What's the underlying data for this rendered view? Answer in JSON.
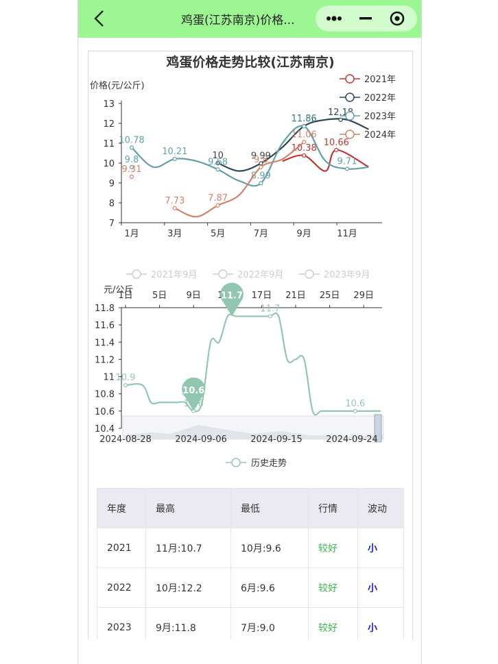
{
  "window": {
    "title": "鸡蛋(江苏南京)价格...",
    "brand_color": "#9cf792"
  },
  "chart_data": [
    {
      "type": "line",
      "title": "鸡蛋价格走势比较(江苏南京)",
      "ylabel": "价格(元/公斤)",
      "ylim": [
        7,
        13
      ],
      "yticks": [
        "7",
        "8",
        "9",
        "10",
        "11",
        "12",
        "13"
      ],
      "xticks": [
        "1月",
        "3月",
        "5月",
        "7月",
        "9月",
        "11月"
      ],
      "legend_position": "top-right",
      "series": [
        {
          "name": "2021年",
          "color": "#c23531",
          "points": [
            [
              8,
              10.1
            ],
            [
              9,
              10.38
            ],
            [
              10,
              9.6
            ],
            [
              10.5,
              10.66
            ],
            [
              12,
              9.8
            ]
          ],
          "labels": [
            {
              "x": 9,
              "y": 10.38,
              "text": "10.38"
            },
            {
              "x": 10.5,
              "y": 10.66,
              "text": "10.66"
            }
          ]
        },
        {
          "name": "2022年",
          "color": "#2f4554",
          "points": [
            [
              5,
              10
            ],
            [
              6,
              9.6
            ],
            [
              7,
              9.99
            ],
            [
              8,
              10.8
            ],
            [
              9,
              11.86
            ],
            [
              10,
              12.18
            ],
            [
              11,
              12.18
            ],
            [
              12,
              11.7
            ]
          ],
          "labels": [
            {
              "x": 5,
              "y": 10,
              "text": "10"
            },
            {
              "x": 7,
              "y": 9.99,
              "text": "9.99"
            },
            {
              "x": 9,
              "y": 11.86,
              "text": "11.86"
            },
            {
              "x": 10.7,
              "y": 12.18,
              "text": "12.18"
            }
          ]
        },
        {
          "name": "2023年",
          "color": "#61a0a8",
          "points": [
            [
              1,
              10.78
            ],
            [
              2,
              9.8
            ],
            [
              3,
              10.21
            ],
            [
              4,
              10.1
            ],
            [
              5,
              9.68
            ],
            [
              6,
              9.1
            ],
            [
              7,
              8.99
            ],
            [
              8,
              11.0
            ],
            [
              9,
              11.85
            ],
            [
              10,
              10.1
            ],
            [
              11,
              9.71
            ],
            [
              12,
              9.8
            ]
          ],
          "labels": [
            {
              "x": 1,
              "y": 10.78,
              "text": "10.78"
            },
            {
              "x": 1,
              "y": 9.8,
              "text": "9.8"
            },
            {
              "x": 3,
              "y": 10.21,
              "text": "10.21"
            },
            {
              "x": 5,
              "y": 9.68,
              "text": "9.68"
            },
            {
              "x": 7,
              "y": 8.99,
              "text": "8.99"
            },
            {
              "x": 9,
              "y": 11.85,
              "text": "11.85"
            },
            {
              "x": 11,
              "y": 9.71,
              "text": "9.71"
            }
          ]
        },
        {
          "name": "2024年",
          "color": "#d48265",
          "points": [
            [
              3,
              7.73
            ],
            [
              4,
              7.3
            ],
            [
              5,
              7.87
            ],
            [
              6,
              8.4
            ],
            [
              7,
              9.8
            ],
            [
              8,
              10.2
            ],
            [
              9,
              11.06
            ]
          ],
          "extra_points": [
            [
              1,
              9.31
            ]
          ],
          "labels": [
            {
              "x": 1,
              "y": 9.31,
              "text": "9.31"
            },
            {
              "x": 3,
              "y": 7.73,
              "text": "7.73"
            },
            {
              "x": 5,
              "y": 7.87,
              "text": "7.87"
            },
            {
              "x": 7,
              "y": 9.8,
              "text": "9.8"
            },
            {
              "x": 9,
              "y": 11.06,
              "text": "11.06"
            }
          ]
        }
      ]
    },
    {
      "type": "line",
      "ylabel": "元/公斤",
      "ylim": [
        10.4,
        11.8
      ],
      "yticks": [
        "10.4",
        "10.6",
        "10.8",
        "11",
        "11.2",
        "11.4",
        "11.6",
        "11.8"
      ],
      "top_xticks": [
        "1日",
        "5日",
        "9日",
        "13日",
        "17日",
        "21日",
        "25日",
        "29日"
      ],
      "bottom_xticks": [
        "2024-08-28",
        "2024-09-06",
        "2024-09-15",
        "2024-09-24"
      ],
      "top_legend": [
        "2021年9月",
        "2022年9月",
        "2023年9月"
      ],
      "bottom_legend": "历史走势",
      "series": [
        {
          "name": "历史走势",
          "color": "#91c7ae",
          "points": [
            [
              0,
              10.9
            ],
            [
              2,
              10.9
            ],
            [
              3,
              10.7
            ],
            [
              4,
              10.7
            ],
            [
              5,
              10.7
            ],
            [
              6,
              10.7
            ],
            [
              7,
              10.7
            ],
            [
              8,
              10.6
            ],
            [
              9,
              10.7
            ],
            [
              10,
              11.4
            ],
            [
              11,
              11.4
            ],
            [
              12,
              11.7
            ],
            [
              13,
              11.7
            ],
            [
              14,
              11.7
            ],
            [
              15,
              11.7
            ],
            [
              16,
              11.7
            ],
            [
              17,
              11.7
            ],
            [
              18,
              11.7
            ],
            [
              19,
              11.2
            ],
            [
              20,
              11.2
            ],
            [
              21,
              11.2
            ],
            [
              22,
              10.6
            ],
            [
              23,
              10.6
            ],
            [
              24,
              10.6
            ],
            [
              25,
              10.6
            ],
            [
              26,
              10.6
            ],
            [
              27,
              10.6
            ],
            [
              28,
              10.6
            ],
            [
              29,
              10.6
            ],
            [
              30,
              10.6
            ]
          ],
          "labels": [
            {
              "x": 0,
              "y": 10.9,
              "text": "10.9"
            },
            {
              "x": 8,
              "y": 10.6,
              "text": "10.6"
            },
            {
              "x": 17,
              "y": 11.7,
              "text": "11.7"
            },
            {
              "x": 27,
              "y": 10.6,
              "text": "10.6"
            }
          ],
          "markers": [
            {
              "x": 8,
              "y": 10.6,
              "text": "10.6"
            },
            {
              "x": 12.5,
              "y": 11.7,
              "text": "11.7"
            }
          ]
        }
      ]
    }
  ],
  "table": {
    "headers": [
      "年度",
      "最高",
      "最低",
      "行情",
      "波动"
    ],
    "rows": [
      [
        "2021",
        "11月:10.7",
        "10月:9.6",
        "较好",
        "小"
      ],
      [
        "2022",
        "10月:12.2",
        "6月:9.6",
        "较好",
        "小"
      ],
      [
        "2023",
        "9月:11.8",
        "7月:9.0",
        "较好",
        "小"
      ]
    ]
  }
}
